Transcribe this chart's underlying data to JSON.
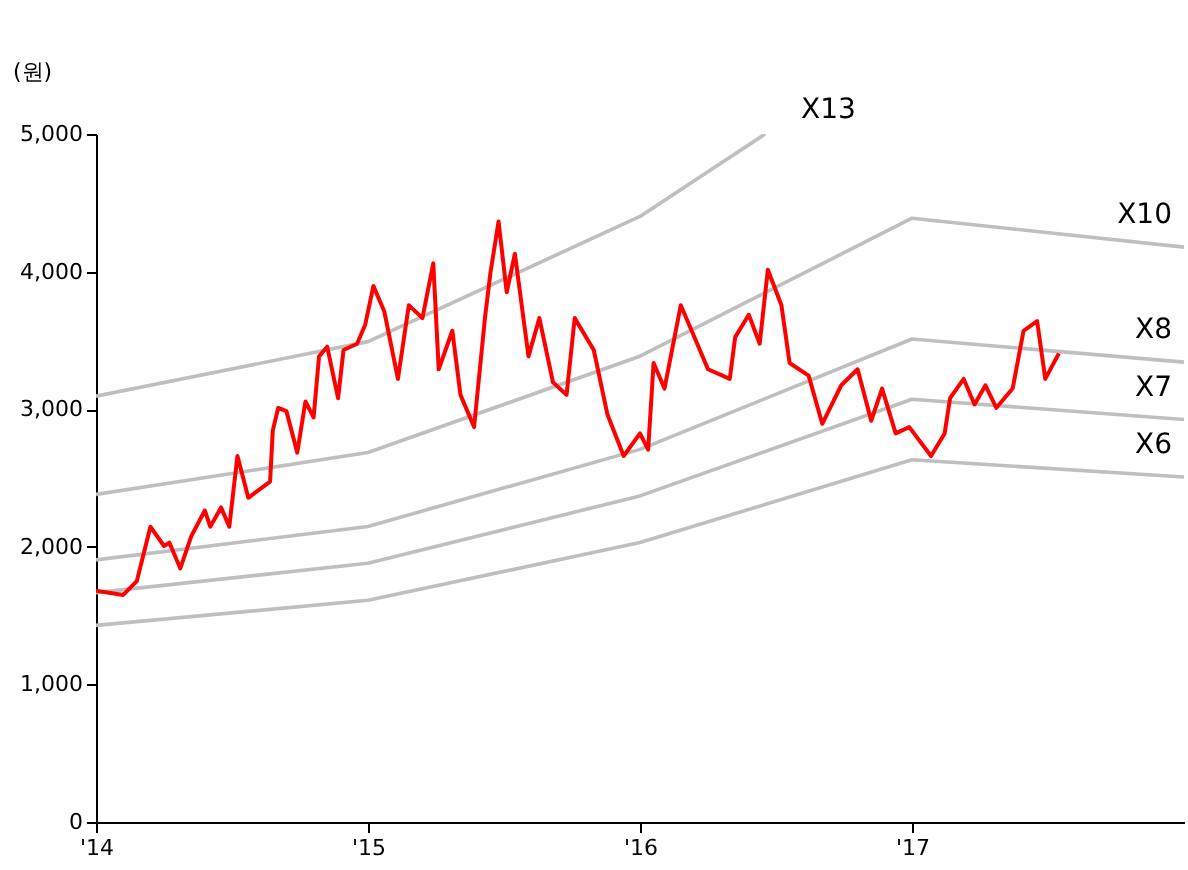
{
  "chart_data": {
    "type": "line",
    "ylabel": "(원)",
    "xlim": [
      2014,
      2018
    ],
    "xticks": [
      {
        "value": 2014,
        "label": "'14"
      },
      {
        "value": 2015,
        "label": "'15"
      },
      {
        "value": 2016,
        "label": "'16"
      },
      {
        "value": 2017,
        "label": "'17"
      }
    ],
    "ylim": [
      0,
      5000
    ],
    "yticks": [
      0,
      {
        "value": 1000,
        "label": "1,000"
      },
      {
        "value": 2000,
        "label": "2,000"
      },
      {
        "value": 3000,
        "label": "3,000"
      },
      {
        "value": 4000,
        "label": "4,000"
      },
      {
        "value": 5000,
        "label": "5,000"
      }
    ],
    "grid": false,
    "line_style": "solid",
    "marker": "none",
    "series": [
      {
        "name": "X13",
        "color": "#bfbfbf",
        "x": [
          2014,
          2015,
          2016,
          2016.46
        ],
        "values": [
          3095,
          3491,
          4401,
          5000
        ]
      },
      {
        "name": "X10",
        "color": "#bfbfbf",
        "x": [
          2014,
          2015,
          2016,
          2017,
          2018
        ],
        "values": [
          2381,
          2685,
          3385,
          4388,
          4178
        ]
      },
      {
        "name": "X8",
        "color": "#bfbfbf",
        "x": [
          2014,
          2015,
          2016,
          2017,
          2018
        ],
        "values": [
          1905,
          2148,
          2708,
          3510,
          3342
        ]
      },
      {
        "name": "X7",
        "color": "#bfbfbf",
        "x": [
          2014,
          2015,
          2016,
          2017,
          2018
        ],
        "values": [
          1667,
          1880,
          2370,
          3072,
          2925
        ]
      },
      {
        "name": "X6",
        "color": "#bfbfbf",
        "x": [
          2014,
          2015,
          2016,
          2017,
          2018
        ],
        "values": [
          1429,
          1611,
          2031,
          2633,
          2507
        ]
      },
      {
        "color": "#ff0000",
        "x": [
          2014.0,
          2014.1,
          2014.15,
          2014.2,
          2014.25,
          2014.27,
          2014.31,
          2014.35,
          2014.4,
          2014.42,
          2014.46,
          2014.49,
          2014.52,
          2014.56,
          2014.64,
          2014.65,
          2014.67,
          2014.7,
          2014.74,
          2014.77,
          2014.8,
          2014.82,
          2014.85,
          2014.89,
          2014.91,
          2014.96,
          2014.99,
          2015.02,
          2015.06,
          2015.11,
          2015.15,
          2015.2,
          2015.24,
          2015.26,
          2015.31,
          2015.34,
          2015.39,
          2015.43,
          2015.45,
          2015.48,
          2015.51,
          2015.54,
          2015.59,
          2015.63,
          2015.68,
          2015.73,
          2015.76,
          2015.83,
          2015.88,
          2015.94,
          2016.0,
          2016.03,
          2016.05,
          2016.09,
          2016.15,
          2016.19,
          2016.25,
          2016.33,
          2016.35,
          2016.4,
          2016.44,
          2016.47,
          2016.52,
          2016.55,
          2016.62,
          2016.67,
          2016.74,
          2016.8,
          2016.85,
          2016.89,
          2016.94,
          2016.99,
          2017.07,
          2017.12,
          2017.14,
          2017.19,
          2017.23,
          2017.27,
          2017.31,
          2017.37,
          2017.41,
          2017.46,
          2017.49,
          2017.54
        ],
        "values": [
          1680,
          1650,
          1750,
          2146,
          2006,
          2030,
          1843,
          2076,
          2264,
          2146,
          2286,
          2146,
          2660,
          2356,
          2474,
          2846,
          3010,
          2986,
          2684,
          3056,
          2940,
          3384,
          3454,
          3080,
          3430,
          3476,
          3616,
          3896,
          3710,
          3220,
          3756,
          3662,
          4060,
          3290,
          3570,
          3104,
          2870,
          3662,
          3990,
          4364,
          3850,
          4130,
          3384,
          3662,
          3196,
          3104,
          3662,
          3430,
          2964,
          2660,
          2824,
          2706,
          3336,
          3150,
          3756,
          3570,
          3290,
          3220,
          3524,
          3686,
          3476,
          4014,
          3756,
          3336,
          3244,
          2894,
          3174,
          3290,
          2916,
          3150,
          2824,
          2870,
          2660,
          2824,
          3080,
          3220,
          3034,
          3174,
          3010,
          3150,
          3570,
          3640,
          3220,
          3406
        ]
      }
    ]
  }
}
